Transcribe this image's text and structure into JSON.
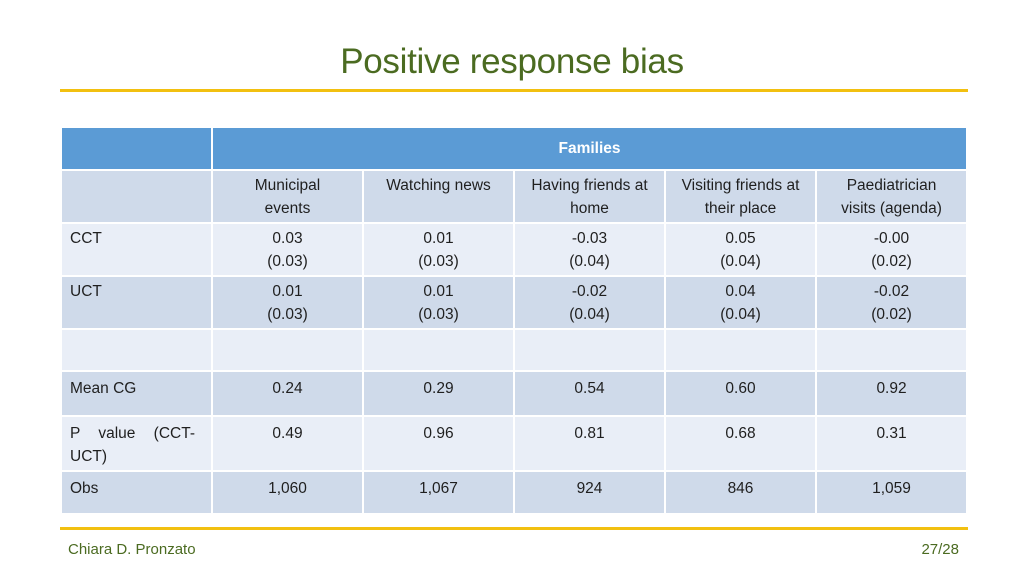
{
  "slide": {
    "title": "Positive response bias",
    "author": "Chiara D. Pronzato",
    "page": "27/28"
  },
  "table": {
    "group_header": "Families",
    "columns": [
      {
        "line1": "Municipal",
        "line2": "events"
      },
      {
        "line1": "Watching news",
        "line2": ""
      },
      {
        "line1": "Having friends at",
        "line2": "home"
      },
      {
        "line1": "Visiting friends at",
        "line2": "their place"
      },
      {
        "line1": "Paediatrician",
        "line2": "visits (agenda)"
      }
    ],
    "rows": {
      "cct": {
        "label": "CCT",
        "coef": [
          "0.03",
          "0.01",
          "-0.03",
          "0.05",
          "-0.00"
        ],
        "se": [
          "(0.03)",
          "(0.03)",
          "(0.04)",
          "(0.04)",
          "(0.02)"
        ]
      },
      "uct": {
        "label": "UCT",
        "coef": [
          "0.01",
          "0.01",
          "-0.02",
          "0.04",
          "-0.02"
        ],
        "se": [
          "(0.03)",
          "(0.03)",
          "(0.04)",
          "(0.04)",
          "(0.02)"
        ]
      },
      "mean_cg": {
        "label": "Mean CG",
        "values": [
          "0.24",
          "0.29",
          "0.54",
          "0.60",
          "0.92"
        ]
      },
      "p_value": {
        "label_line1": "P value (CCT-",
        "label_line2": "UCT)",
        "values": [
          "0.49",
          "0.96",
          "0.81",
          "0.68",
          "0.31"
        ]
      },
      "obs": {
        "label": "Obs",
        "values": [
          "1,060",
          "1,067",
          "924",
          "846",
          "1,059"
        ]
      }
    }
  },
  "colors": {
    "title": "#4b6b21",
    "rule": "#f2c010",
    "header_bg": "#5b9bd5",
    "row_dark": "#cfdaea",
    "row_light": "#e9eef7"
  }
}
